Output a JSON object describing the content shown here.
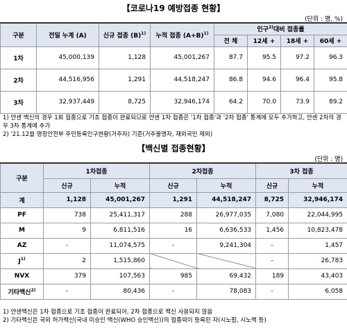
{
  "status": {
    "title": "【코로나19 예방접종 현황】",
    "unit": "(단위 : 명, %)",
    "header": {
      "category": "구분",
      "prev": "전일 누계 (A)",
      "new": {
        "text": "신규 접종 (B)",
        "note": "1)"
      },
      "cum": {
        "text": "누적 접종 (A+B)",
        "note": "1)"
      },
      "rate": {
        "pre": "인구",
        "note": "2)",
        "post": "대비 접종률"
      },
      "rate_cols": [
        "전 체",
        "12세 +",
        "18세 +",
        "60세 +"
      ]
    },
    "rows": [
      [
        "1차",
        "45,000,139",
        "1,128",
        "45,001,267",
        "87.7",
        "95.5",
        "97.2",
        "96.3"
      ],
      [
        "2차",
        "44,516,956",
        "1,291",
        "44,518,247",
        "86.8",
        "94.6",
        "96.4",
        "95.8"
      ],
      [
        "3차",
        "32,937,449",
        "8,725",
        "32,946,174",
        "64.2",
        "70.0",
        "73.9",
        "89.2"
      ]
    ],
    "notes": [
      "1) 얀센 백신의 경우 1회 접종으로 기초 접종이 완료되므로 얀센 1차 접종은 '1차 접종'과 '2차 접종' 통계에 모두 추가하고, 얀센 2차의 경우 3차 통계에 추가",
      "2) '21.12월 행정안전부 주민등록인구현황(거주자) 기준(거주불명자, 재외국민 제외)"
    ]
  },
  "vaccine": {
    "title": "【백신별 접종현황】",
    "unit": "(단위 : 명)",
    "header": {
      "category": "구분",
      "groups": [
        "1차접종",
        "2차접종",
        "3차 접종"
      ],
      "sub": [
        "신규",
        "누적",
        "신규",
        "누적",
        "신규",
        "누적"
      ]
    },
    "rows": [
      [
        {
          "text": "계"
        },
        "1,128",
        "45,001,267",
        "1,291",
        "44,518,247",
        "8,725",
        "32,946,174"
      ],
      [
        {
          "text": "PF"
        },
        "738",
        "25,411,317",
        "288",
        "26,977,035",
        "7,080",
        "22,044,995"
      ],
      [
        {
          "text": "M"
        },
        "9",
        "6,811,516",
        "16",
        "6,636,533",
        "1,456",
        "10,823,478"
      ],
      [
        {
          "text": "AZ"
        },
        "-",
        "11,074,575",
        "-",
        "9,241,304",
        "-",
        "1,457"
      ],
      [
        {
          "text": "J",
          "note": "1)"
        },
        "2",
        "1,515,860",
        null,
        null,
        "-",
        "26,783"
      ],
      [
        {
          "text": "NVX"
        },
        "379",
        "107,563",
        "985",
        "69,432",
        "189",
        "43,403"
      ],
      [
        {
          "text": "기타백신",
          "note": "2)"
        },
        "-",
        "80,436",
        "-",
        "78,083",
        "-",
        "6,058"
      ]
    ],
    "notes": [
      "1) 얀센백신은 1차 접종으로 기초 접종이 완료되어, 2차 접종으로 백신 사용되지 않음",
      "2) 기타백신은 국외 허가백신(국내 미승인 백신(WHO 승인백신))의 접종력이 등록된 자(시노팜, 시노백 등)"
    ]
  }
}
